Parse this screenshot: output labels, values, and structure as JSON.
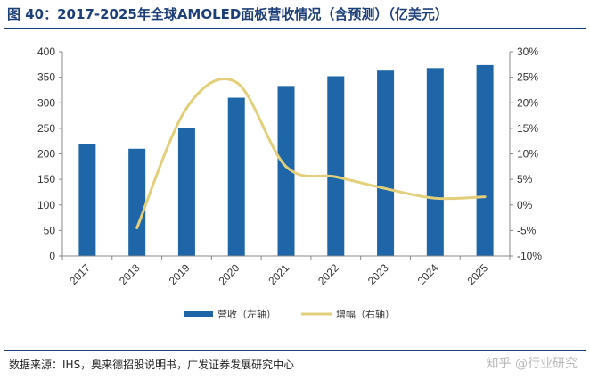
{
  "title": "图 40：2017-2025年全球AMOLED面板营收情况（含预测）（亿美元）",
  "source": "数据来源：IHS，奥来德招股说明书，广发证券发展研究中心",
  "watermark": "知乎 @行业研究",
  "colors": {
    "bar": "#1f66a8",
    "line": "#e3cf7a",
    "title": "#1d3f78"
  },
  "chart_data": {
    "type": "bar",
    "categories": [
      "2017",
      "2018",
      "2019",
      "2020",
      "2021",
      "2022",
      "2023",
      "2024",
      "2025"
    ],
    "y_left": {
      "min": 0,
      "max": 400,
      "step": 50
    },
    "y_right": {
      "min": -10,
      "max": 30,
      "step": 5,
      "format": "percent"
    },
    "grid": false,
    "legend_position": "bottom",
    "series": [
      {
        "name": "营收（左轴）",
        "type": "bar",
        "axis": "left",
        "values": [
          220,
          210,
          250,
          310,
          333,
          352,
          363,
          368,
          374
        ]
      },
      {
        "name": "增幅（右轴）",
        "type": "line",
        "axis": "right",
        "values": [
          null,
          -4.5,
          19,
          24,
          7.5,
          5.5,
          3.2,
          1.3,
          1.6
        ]
      }
    ]
  }
}
